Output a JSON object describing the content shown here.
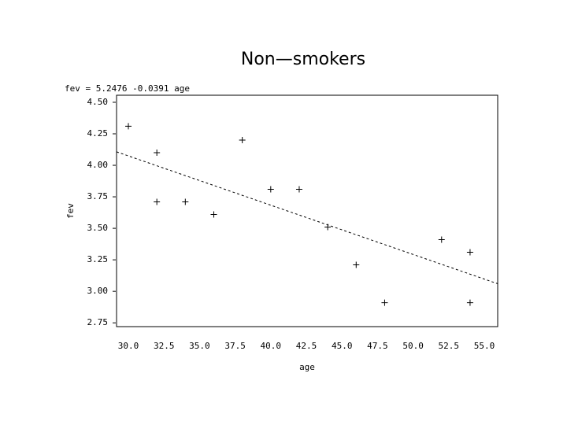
{
  "chart_data": {
    "type": "scatter",
    "title": "Non—smokers",
    "equation": "fev = 5.2476 -0.0391 age",
    "fit": {
      "intercept": 5.2476,
      "slope": -0.0391
    },
    "x_label": "age",
    "y_label": "fev",
    "series": [
      {
        "name": "fev",
        "color": "#000000",
        "x": [
          30,
          32,
          32,
          34,
          36,
          38,
          40,
          42,
          44,
          46,
          48,
          52,
          54,
          54
        ],
        "values": [
          4.31,
          4.1,
          3.71,
          3.71,
          3.61,
          4.2,
          3.81,
          3.81,
          3.51,
          3.21,
          2.91,
          3.41,
          3.31,
          2.91
        ]
      }
    ],
    "xlim": [
      29.17,
      55.94
    ],
    "ylim": [
      2.72,
      4.556
    ],
    "xticks": [
      {
        "value": 30,
        "label": "30.0"
      },
      {
        "value": 32.5,
        "label": "32.5"
      },
      {
        "value": 35,
        "label": "35.0"
      },
      {
        "value": 37.5,
        "label": "37.5"
      },
      {
        "value": 40,
        "label": "40.0"
      },
      {
        "value": 42.5,
        "label": "42.5"
      },
      {
        "value": 45,
        "label": "45.0"
      },
      {
        "value": 47.5,
        "label": "47.5"
      },
      {
        "value": 50,
        "label": "50.0"
      },
      {
        "value": 52.5,
        "label": "52.5"
      },
      {
        "value": 55,
        "label": "55.0"
      }
    ],
    "yticks": [
      {
        "value": 2.75,
        "label": "2.75"
      },
      {
        "value": 3,
        "label": "3.00"
      },
      {
        "value": 3.25,
        "label": "3.25"
      },
      {
        "value": 3.5,
        "label": "3.50"
      },
      {
        "value": 3.75,
        "label": "3.75"
      },
      {
        "value": 4,
        "label": "4.00"
      },
      {
        "value": 4.25,
        "label": "4.25"
      },
      {
        "value": 4.5,
        "label": "4.50"
      }
    ]
  }
}
